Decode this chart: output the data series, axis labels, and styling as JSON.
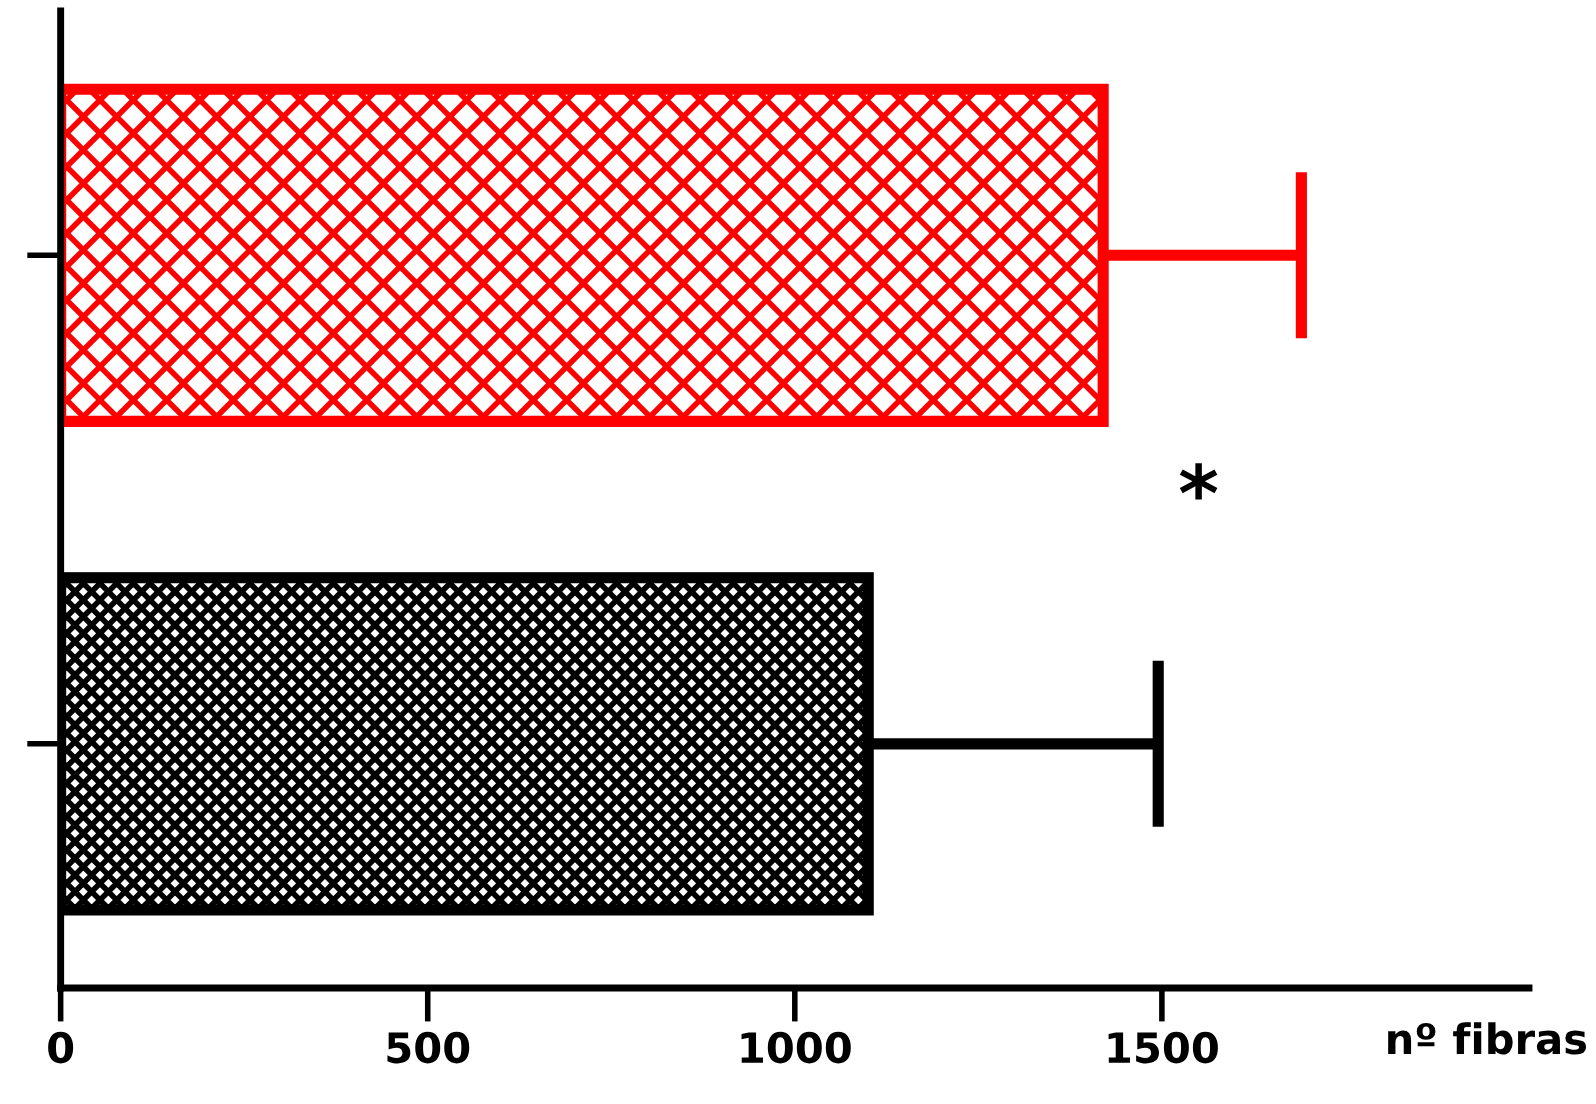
{
  "chart_data": {
    "type": "bar",
    "orientation": "horizontal",
    "categories": [
      null,
      null
    ],
    "xlabel": "nº fibras",
    "values": [
      1420,
      1100
    ],
    "colors": [
      "#ff0000",
      "#000000"
    ],
    "errors": [
      [
        1420,
        1690
      ],
      [
        1100,
        1495
      ]
    ],
    "xlim": [
      0,
      2000
    ],
    "xticks": [
      0,
      500,
      1000,
      1500
    ],
    "tick_labels": "x",
    "grid": false,
    "annotations": [
      "*"
    ]
  }
}
